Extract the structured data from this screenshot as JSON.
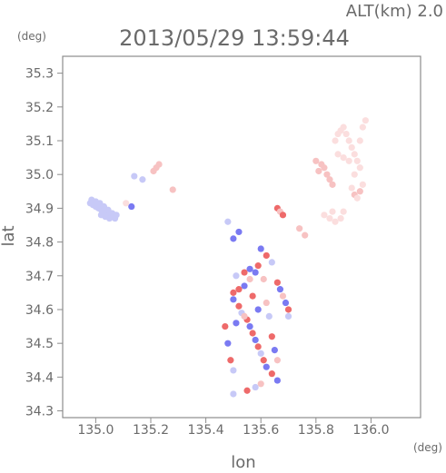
{
  "chart_data": {
    "type": "scatter",
    "title": "2013/05/29 13:59:44",
    "subtitle": "ALT(km) 2.0",
    "xlabel": "lon",
    "ylabel": "lat",
    "x_unit": "(deg)",
    "y_unit": "(deg)",
    "xlim": [
      134.88,
      136.18
    ],
    "ylim": [
      34.28,
      35.35
    ],
    "x_ticks": [
      "135.0",
      "135.2",
      "135.4",
      "135.6",
      "135.8",
      "136.0"
    ],
    "y_ticks": [
      "34.3",
      "34.4",
      "34.5",
      "34.6",
      "34.7",
      "34.8",
      "34.9",
      "35.0",
      "35.1",
      "35.2",
      "35.3"
    ],
    "grid": false,
    "colors": {
      "blue_strong": "#7a7af2",
      "blue_light": "#c7c9f7",
      "red_strong": "#ee6a6a",
      "red_light": "#f7c2c2",
      "red_pale": "#fbdede"
    },
    "points": [
      {
        "x": 134.98,
        "y": 34.915,
        "v": -0.4
      },
      {
        "x": 134.99,
        "y": 34.91,
        "v": -0.35
      },
      {
        "x": 135.0,
        "y": 34.905,
        "v": -0.4
      },
      {
        "x": 135.01,
        "y": 34.9,
        "v": -0.35
      },
      {
        "x": 135.02,
        "y": 34.895,
        "v": -0.4
      },
      {
        "x": 135.03,
        "y": 34.89,
        "v": -0.35
      },
      {
        "x": 135.04,
        "y": 34.885,
        "v": -0.4
      },
      {
        "x": 135.05,
        "y": 34.88,
        "v": -0.35
      },
      {
        "x": 135.06,
        "y": 34.875,
        "v": -0.4
      },
      {
        "x": 135.07,
        "y": 34.87,
        "v": -0.35
      },
      {
        "x": 134.985,
        "y": 34.925,
        "v": -0.3
      },
      {
        "x": 135.0,
        "y": 34.92,
        "v": -0.35
      },
      {
        "x": 135.015,
        "y": 34.915,
        "v": -0.3
      },
      {
        "x": 135.03,
        "y": 34.905,
        "v": -0.35
      },
      {
        "x": 135.045,
        "y": 34.895,
        "v": -0.3
      },
      {
        "x": 135.06,
        "y": 34.885,
        "v": -0.35
      },
      {
        "x": 135.075,
        "y": 34.88,
        "v": -0.3
      },
      {
        "x": 135.05,
        "y": 34.87,
        "v": -0.4
      },
      {
        "x": 135.035,
        "y": 34.875,
        "v": -0.35
      },
      {
        "x": 135.02,
        "y": 34.88,
        "v": -0.4
      },
      {
        "x": 135.14,
        "y": 34.995,
        "v": -0.3
      },
      {
        "x": 135.17,
        "y": 34.985,
        "v": -0.2
      },
      {
        "x": 135.21,
        "y": 35.01,
        "v": 0.5
      },
      {
        "x": 135.22,
        "y": 35.02,
        "v": 0.4
      },
      {
        "x": 135.23,
        "y": 35.03,
        "v": 0.3
      },
      {
        "x": 135.13,
        "y": 34.905,
        "v": -0.7
      },
      {
        "x": 135.11,
        "y": 34.915,
        "v": 0.2
      },
      {
        "x": 135.28,
        "y": 34.955,
        "v": 0.3
      },
      {
        "x": 135.8,
        "y": 35.04,
        "v": 0.3
      },
      {
        "x": 135.82,
        "y": 35.03,
        "v": 0.35
      },
      {
        "x": 135.83,
        "y": 35.02,
        "v": 0.3
      },
      {
        "x": 135.84,
        "y": 35.0,
        "v": 0.35
      },
      {
        "x": 135.85,
        "y": 34.985,
        "v": 0.3
      },
      {
        "x": 135.86,
        "y": 34.97,
        "v": 0.35
      },
      {
        "x": 135.81,
        "y": 35.01,
        "v": 0.3
      },
      {
        "x": 135.87,
        "y": 35.1,
        "v": 0.2
      },
      {
        "x": 135.88,
        "y": 35.12,
        "v": 0.25
      },
      {
        "x": 135.89,
        "y": 35.13,
        "v": 0.2
      },
      {
        "x": 135.9,
        "y": 35.14,
        "v": 0.25
      },
      {
        "x": 135.91,
        "y": 35.12,
        "v": 0.2
      },
      {
        "x": 135.92,
        "y": 35.1,
        "v": 0.25
      },
      {
        "x": 135.93,
        "y": 35.08,
        "v": 0.2
      },
      {
        "x": 135.94,
        "y": 35.06,
        "v": 0.25
      },
      {
        "x": 135.95,
        "y": 35.04,
        "v": 0.2
      },
      {
        "x": 135.96,
        "y": 35.02,
        "v": 0.25
      },
      {
        "x": 135.88,
        "y": 35.06,
        "v": 0.15
      },
      {
        "x": 135.9,
        "y": 35.05,
        "v": 0.2
      },
      {
        "x": 135.92,
        "y": 35.04,
        "v": 0.15
      },
      {
        "x": 135.94,
        "y": 35.0,
        "v": 0.2
      },
      {
        "x": 135.96,
        "y": 35.1,
        "v": 0.15
      },
      {
        "x": 135.97,
        "y": 35.14,
        "v": 0.2
      },
      {
        "x": 135.98,
        "y": 35.16,
        "v": 0.15
      },
      {
        "x": 135.93,
        "y": 34.96,
        "v": 0.25
      },
      {
        "x": 135.94,
        "y": 34.94,
        "v": 0.3
      },
      {
        "x": 135.95,
        "y": 34.93,
        "v": 0.25
      },
      {
        "x": 135.96,
        "y": 34.95,
        "v": 0.3
      },
      {
        "x": 135.97,
        "y": 34.97,
        "v": 0.25
      },
      {
        "x": 135.83,
        "y": 34.88,
        "v": 0.15
      },
      {
        "x": 135.85,
        "y": 34.87,
        "v": 0.2
      },
      {
        "x": 135.87,
        "y": 34.86,
        "v": 0.15
      },
      {
        "x": 135.89,
        "y": 34.87,
        "v": 0.2
      },
      {
        "x": 135.9,
        "y": 34.89,
        "v": 0.15
      },
      {
        "x": 135.86,
        "y": 34.89,
        "v": 0.2
      },
      {
        "x": 135.66,
        "y": 34.9,
        "v": 0.6
      },
      {
        "x": 135.67,
        "y": 34.89,
        "v": 0.5
      },
      {
        "x": 135.68,
        "y": 34.88,
        "v": 0.6
      },
      {
        "x": 135.74,
        "y": 34.84,
        "v": 0.4
      },
      {
        "x": 135.76,
        "y": 34.82,
        "v": 0.5
      },
      {
        "x": 135.5,
        "y": 34.81,
        "v": -0.8
      },
      {
        "x": 135.52,
        "y": 34.83,
        "v": -0.6
      },
      {
        "x": 135.48,
        "y": 34.86,
        "v": -0.5
      },
      {
        "x": 135.6,
        "y": 34.78,
        "v": -0.7
      },
      {
        "x": 135.62,
        "y": 34.76,
        "v": 0.6
      },
      {
        "x": 135.64,
        "y": 34.74,
        "v": -0.5
      },
      {
        "x": 135.59,
        "y": 34.73,
        "v": 0.7
      },
      {
        "x": 135.58,
        "y": 34.71,
        "v": -0.6
      },
      {
        "x": 135.56,
        "y": 34.69,
        "v": 0.5
      },
      {
        "x": 135.54,
        "y": 34.67,
        "v": -0.7
      },
      {
        "x": 135.52,
        "y": 34.66,
        "v": 0.6
      },
      {
        "x": 135.5,
        "y": 34.65,
        "v": 0.8
      },
      {
        "x": 135.5,
        "y": 34.63,
        "v": -0.6
      },
      {
        "x": 135.52,
        "y": 34.61,
        "v": 0.7
      },
      {
        "x": 135.53,
        "y": 34.59,
        "v": -0.5
      },
      {
        "x": 135.55,
        "y": 34.57,
        "v": 0.6
      },
      {
        "x": 135.56,
        "y": 34.55,
        "v": -0.7
      },
      {
        "x": 135.57,
        "y": 34.53,
        "v": 0.8
      },
      {
        "x": 135.58,
        "y": 34.51,
        "v": -0.6
      },
      {
        "x": 135.59,
        "y": 34.49,
        "v": 0.7
      },
      {
        "x": 135.6,
        "y": 34.47,
        "v": -0.5
      },
      {
        "x": 135.61,
        "y": 34.45,
        "v": 0.6
      },
      {
        "x": 135.62,
        "y": 34.43,
        "v": -0.7
      },
      {
        "x": 135.64,
        "y": 34.41,
        "v": 0.8
      },
      {
        "x": 135.66,
        "y": 34.39,
        "v": -0.6
      },
      {
        "x": 135.6,
        "y": 34.38,
        "v": 0.5
      },
      {
        "x": 135.58,
        "y": 34.37,
        "v": -0.4
      },
      {
        "x": 135.55,
        "y": 34.36,
        "v": 0.9
      },
      {
        "x": 135.5,
        "y": 34.35,
        "v": -0.5
      },
      {
        "x": 135.66,
        "y": 34.68,
        "v": 0.6
      },
      {
        "x": 135.67,
        "y": 34.66,
        "v": -0.7
      },
      {
        "x": 135.68,
        "y": 34.64,
        "v": 0.5
      },
      {
        "x": 135.69,
        "y": 34.62,
        "v": -0.6
      },
      {
        "x": 135.7,
        "y": 34.6,
        "v": 0.7
      },
      {
        "x": 135.7,
        "y": 34.58,
        "v": -0.5
      },
      {
        "x": 135.47,
        "y": 34.55,
        "v": 0.6
      },
      {
        "x": 135.48,
        "y": 34.5,
        "v": -0.6
      },
      {
        "x": 135.49,
        "y": 34.45,
        "v": 0.7
      },
      {
        "x": 135.5,
        "y": 34.42,
        "v": -0.5
      },
      {
        "x": 135.62,
        "y": 34.62,
        "v": 0.5
      },
      {
        "x": 135.63,
        "y": 34.58,
        "v": -0.4
      },
      {
        "x": 135.64,
        "y": 34.52,
        "v": 0.6
      },
      {
        "x": 135.65,
        "y": 34.48,
        "v": -0.7
      },
      {
        "x": 135.66,
        "y": 34.45,
        "v": 0.5
      },
      {
        "x": 135.54,
        "y": 34.71,
        "v": 0.8
      },
      {
        "x": 135.56,
        "y": 34.72,
        "v": -0.6
      },
      {
        "x": 135.61,
        "y": 34.69,
        "v": 0.4
      },
      {
        "x": 135.51,
        "y": 34.7,
        "v": -0.5
      },
      {
        "x": 135.57,
        "y": 34.64,
        "v": 0.6
      },
      {
        "x": 135.59,
        "y": 34.6,
        "v": -0.7
      },
      {
        "x": 135.54,
        "y": 34.58,
        "v": 0.5
      },
      {
        "x": 135.51,
        "y": 34.56,
        "v": -0.6
      }
    ]
  }
}
